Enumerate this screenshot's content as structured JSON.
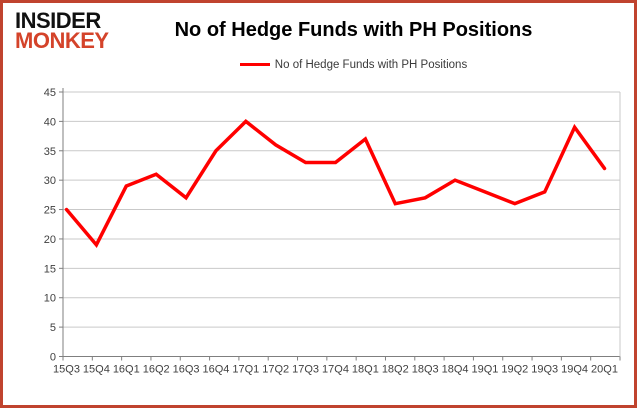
{
  "logo": {
    "line1": "INSIDER",
    "line2": "MONKEY"
  },
  "title": "No of Hedge Funds with PH Positions",
  "legend": {
    "label": "No of Hedge Funds with PH Positions"
  },
  "colors": {
    "border": "#c0432e",
    "line": "#ff0000",
    "logo_accent": "#d4432a",
    "gridline": "#c9c9c9",
    "axis": "#7f7f7f",
    "label_text": "#404040"
  },
  "chart_data": {
    "type": "line",
    "title": "No of Hedge Funds with PH Positions",
    "categories": [
      "15Q3",
      "15Q4",
      "16Q1",
      "16Q2",
      "16Q3",
      "16Q4",
      "17Q1",
      "17Q2",
      "17Q3",
      "17Q4",
      "18Q1",
      "18Q2",
      "18Q3",
      "18Q4",
      "19Q1",
      "19Q2",
      "19Q3",
      "19Q4",
      "20Q1"
    ],
    "series": [
      {
        "name": "No of Hedge Funds with PH Positions",
        "color": "#ff0000",
        "values": [
          25,
          19,
          29,
          31,
          27,
          35,
          40,
          36,
          33,
          33,
          37,
          26,
          27,
          30,
          28,
          26,
          28,
          39,
          32
        ]
      }
    ],
    "ylim": [
      0,
      45
    ],
    "ytick_step": 5,
    "yticks": [
      "0",
      "5",
      "10",
      "15",
      "20",
      "25",
      "30",
      "35",
      "40",
      "45"
    ],
    "grid": "horizontal",
    "legend_position": "top"
  }
}
